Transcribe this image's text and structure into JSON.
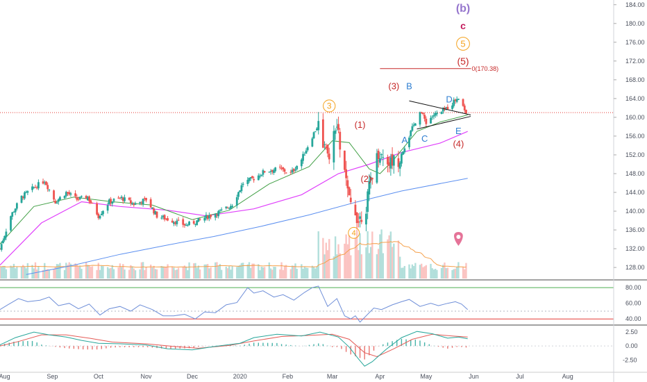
{
  "colors": {
    "up": "#26a69a",
    "down": "#ef5350",
    "vol_up": "#b2dfdb",
    "vol_down": "#fbc4c2",
    "sma20": "#43a047",
    "sma50": "#e040fb",
    "sma200": "#5b8ff0",
    "vol_ma": "#f5a04a",
    "rsi": "#6e8ed8",
    "macd": "#26a69a",
    "signal": "#e45b56",
    "wave_red": "#c62828",
    "wave_orange": "#f4a11c",
    "wave_blue": "#2f7fd1",
    "wave_purple": "#9575cd",
    "wave_pink": "#c2185b",
    "rsi_upper": "#4caf50",
    "rsi_lower": "#e53935",
    "price_line": "#e53935"
  },
  "chart_data": [
    {
      "type": "candlestick",
      "title": "",
      "y_ticks": [
        "184.00",
        "180.00",
        "176.00",
        "172.00",
        "168.00",
        "164.00",
        "160.00",
        "156.00",
        "152.00",
        "148.00",
        "144.00",
        "140.00",
        "136.00",
        "132.00",
        "128.00"
      ],
      "ylim": [
        125.5,
        185.0
      ],
      "x_ticks": [
        "Aug",
        "Sep",
        "Oct",
        "Nov",
        "Dec",
        "2020",
        "Feb",
        "Mar",
        "Apr",
        "May",
        "Jun",
        "Jul",
        "Aug"
      ],
      "x_tick_dates": [
        "2019-08-01",
        "2019-09-01",
        "2019-10-01",
        "2019-11-01",
        "2019-12-01",
        "2020-01-01",
        "2020-02-01",
        "2020-03-01",
        "2020-04-01",
        "2020-05-01",
        "2020-06-01",
        "2020-07-01",
        "2020-08-01"
      ],
      "x_range": [
        "2019-07-29",
        "2020-08-30"
      ],
      "current_price_line": 161.0,
      "target_label": "0(170.38)",
      "target_level": 170.38,
      "target_range": [
        "2020-04-01",
        "2020-06-01"
      ],
      "anchors": [
        [
          "2019-07-29",
          132.0
        ],
        [
          "2019-08-05",
          139.0
        ],
        [
          "2019-08-12",
          143.0
        ],
        [
          "2019-08-20",
          145.0
        ],
        [
          "2019-08-27",
          146.5
        ],
        [
          "2019-09-03",
          142.0
        ],
        [
          "2019-09-10",
          144.0
        ],
        [
          "2019-09-17",
          142.5
        ],
        [
          "2019-09-24",
          143.0
        ],
        [
          "2019-10-01",
          139.0
        ],
        [
          "2019-10-08",
          142.0
        ],
        [
          "2019-10-16",
          142.8
        ],
        [
          "2019-10-24",
          141.5
        ],
        [
          "2019-11-01",
          142.5
        ],
        [
          "2019-11-08",
          139.0
        ],
        [
          "2019-11-18",
          138.0
        ],
        [
          "2019-11-27",
          137.0
        ],
        [
          "2019-12-05",
          138.0
        ],
        [
          "2019-12-12",
          139.0
        ],
        [
          "2019-12-20",
          140.0
        ],
        [
          "2019-12-27",
          141.5
        ],
        [
          "2020-01-03",
          146.0
        ],
        [
          "2020-01-10",
          147.0
        ],
        [
          "2020-01-17",
          148.5
        ],
        [
          "2020-01-27",
          149.0
        ],
        [
          "2020-02-03",
          148.0
        ],
        [
          "2020-02-10",
          151.0
        ],
        [
          "2020-02-17",
          156.0
        ],
        [
          "2020-02-21",
          158.5
        ],
        [
          "2020-02-27",
          151.0
        ],
        [
          "2020-03-04",
          158.0
        ],
        [
          "2020-03-09",
          148.0
        ],
        [
          "2020-03-12",
          142.0
        ],
        [
          "2020-03-16",
          140.0
        ],
        [
          "2020-03-18",
          138.0
        ],
        [
          "2020-03-23",
          141.0
        ],
        [
          "2020-03-26",
          147.0
        ],
        [
          "2020-03-31",
          152.5
        ],
        [
          "2020-04-07",
          150.5
        ],
        [
          "2020-04-13",
          151.0
        ],
        [
          "2020-04-20",
          156.0
        ],
        [
          "2020-04-27",
          161.5
        ],
        [
          "2020-05-01",
          159.0
        ],
        [
          "2020-05-06",
          160.5
        ],
        [
          "2020-05-11",
          161.0
        ],
        [
          "2020-05-18",
          163.0
        ],
        [
          "2020-05-22",
          164.5
        ],
        [
          "2020-05-27",
          161.0
        ]
      ],
      "series_ma": {
        "sma20": [
          [
            "2019-07-29",
            133
          ],
          [
            "2019-08-20",
            141
          ],
          [
            "2019-09-15",
            143
          ],
          [
            "2019-10-10",
            142
          ],
          [
            "2019-11-05",
            141.3
          ],
          [
            "2019-12-01",
            138.2
          ],
          [
            "2019-12-25",
            140.2
          ],
          [
            "2020-01-20",
            145.8
          ],
          [
            "2020-02-15",
            149.5
          ],
          [
            "2020-03-01",
            155
          ],
          [
            "2020-03-12",
            154.6
          ],
          [
            "2020-03-25",
            149
          ],
          [
            "2020-04-01",
            148.0
          ],
          [
            "2020-04-10",
            151
          ],
          [
            "2020-04-25",
            157
          ],
          [
            "2020-05-10",
            159
          ],
          [
            "2020-05-28",
            160.5
          ]
        ],
        "sma50": [
          [
            "2019-07-29",
            128.5
          ],
          [
            "2019-08-25",
            137.5
          ],
          [
            "2019-09-20",
            142
          ],
          [
            "2019-10-15",
            141
          ],
          [
            "2019-11-15",
            140.2
          ],
          [
            "2019-12-10",
            139.0
          ],
          [
            "2020-01-10",
            140.5
          ],
          [
            "2020-02-10",
            143.5
          ],
          [
            "2020-03-05",
            148
          ],
          [
            "2020-03-25",
            150
          ],
          [
            "2020-04-15",
            152.5
          ],
          [
            "2020-05-10",
            154.5
          ],
          [
            "2020-05-28",
            157.0
          ]
        ],
        "sma200": [
          [
            "2019-08-15",
            126.5
          ],
          [
            "2019-09-15",
            128.5
          ],
          [
            "2019-10-15",
            130.8
          ],
          [
            "2019-11-15",
            132.8
          ],
          [
            "2019-12-15",
            134.6
          ],
          [
            "2020-01-15",
            136.8
          ],
          [
            "2020-02-15",
            139.2
          ],
          [
            "2020-03-15",
            141.8
          ],
          [
            "2020-04-15",
            144.3
          ],
          [
            "2020-05-28",
            147.0
          ]
        ]
      },
      "wave_labels": [
        {
          "text": "(b)",
          "date": "2020-05-25",
          "price": 182.5,
          "color": "wave_purple",
          "size": 16,
          "weight": "bold"
        },
        {
          "text": "c",
          "date": "2020-05-25",
          "price": 178.8,
          "color": "wave_pink",
          "size": 14,
          "weight": "bold"
        },
        {
          "text": "5",
          "date": "2020-05-25",
          "price": 175.0,
          "color": "wave_orange",
          "size": 13,
          "weight": "normal",
          "circle": true
        },
        {
          "text": "(5)",
          "date": "2020-05-25",
          "price": 171.2,
          "color": "wave_red",
          "size": 14,
          "weight": "normal"
        },
        {
          "text": "3",
          "date": "2020-02-28",
          "price": 161.8,
          "color": "wave_orange",
          "size": 12,
          "weight": "normal",
          "circle": true
        },
        {
          "text": "(3)",
          "date": "2020-04-10",
          "price": 166.0,
          "color": "wave_red",
          "size": 13,
          "weight": "normal"
        },
        {
          "text": "B",
          "date": "2020-04-20",
          "price": 166.0,
          "color": "wave_blue",
          "size": 13,
          "weight": "normal"
        },
        {
          "text": "(1)",
          "date": "2020-03-19",
          "price": 157.8,
          "color": "wave_red",
          "size": 13,
          "weight": "normal"
        },
        {
          "text": "(2)",
          "date": "2020-03-23",
          "price": 146.2,
          "color": "wave_red",
          "size": 13,
          "weight": "normal"
        },
        {
          "text": "A",
          "date": "2020-04-17",
          "price": 154.5,
          "color": "wave_blue",
          "size": 13,
          "weight": "normal"
        },
        {
          "text": "C",
          "date": "2020-04-30",
          "price": 154.8,
          "color": "wave_blue",
          "size": 13,
          "weight": "normal"
        },
        {
          "text": "D",
          "date": "2020-05-16",
          "price": 163.2,
          "color": "wave_blue",
          "size": 13,
          "weight": "normal"
        },
        {
          "text": "E",
          "date": "2020-05-22",
          "price": 156.4,
          "color": "wave_blue",
          "size": 13,
          "weight": "normal"
        },
        {
          "text": "(4)",
          "date": "2020-05-22",
          "price": 153.7,
          "color": "wave_red",
          "size": 13,
          "weight": "normal"
        },
        {
          "text": "4",
          "date": "2020-03-15",
          "price": 134.8,
          "color": "wave_orange",
          "size": 11,
          "weight": "normal",
          "circle": true
        }
      ],
      "triangle_lines": [
        [
          [
            "2020-04-20",
            163.5
          ],
          [
            "2020-05-30",
            160.5
          ]
        ],
        [
          [
            "2020-04-25",
            157.5
          ],
          [
            "2020-05-30",
            160.2
          ]
        ]
      ],
      "event_marker_date": "2020-05-22"
    },
    {
      "type": "line",
      "name": "rsi",
      "y_ticks": [
        "80.00",
        "60.00",
        "40.00"
      ],
      "ylim": [
        34,
        89
      ],
      "upper_band": 80,
      "lower_band": 40,
      "mid_level": 50,
      "points": [
        [
          "2019-07-29",
          52
        ],
        [
          "2019-08-03",
          58
        ],
        [
          "2019-08-10",
          66
        ],
        [
          "2019-08-16",
          62
        ],
        [
          "2019-08-24",
          64
        ],
        [
          "2019-08-30",
          68
        ],
        [
          "2019-09-05",
          57
        ],
        [
          "2019-09-12",
          60
        ],
        [
          "2019-09-18",
          53
        ],
        [
          "2019-09-25",
          59
        ],
        [
          "2019-10-02",
          45
        ],
        [
          "2019-10-08",
          53
        ],
        [
          "2019-10-15",
          56
        ],
        [
          "2019-10-22",
          50
        ],
        [
          "2019-10-28",
          58
        ],
        [
          "2019-11-05",
          52
        ],
        [
          "2019-11-12",
          44
        ],
        [
          "2019-11-19",
          44
        ],
        [
          "2019-11-26",
          46
        ],
        [
          "2019-12-03",
          40
        ],
        [
          "2019-12-09",
          49
        ],
        [
          "2019-12-16",
          48
        ],
        [
          "2019-12-23",
          58
        ],
        [
          "2019-12-30",
          61
        ],
        [
          "2020-01-06",
          80
        ],
        [
          "2020-01-10",
          73
        ],
        [
          "2020-01-16",
          76
        ],
        [
          "2020-01-23",
          68
        ],
        [
          "2020-01-29",
          71
        ],
        [
          "2020-02-05",
          64
        ],
        [
          "2020-02-12",
          74
        ],
        [
          "2020-02-17",
          80
        ],
        [
          "2020-02-21",
          82
        ],
        [
          "2020-02-27",
          56
        ],
        [
          "2020-03-04",
          66
        ],
        [
          "2020-03-09",
          44
        ],
        [
          "2020-03-13",
          40
        ],
        [
          "2020-03-16",
          44
        ],
        [
          "2020-03-19",
          36
        ],
        [
          "2020-03-24",
          46
        ],
        [
          "2020-03-28",
          54
        ],
        [
          "2020-04-02",
          52
        ],
        [
          "2020-04-09",
          58
        ],
        [
          "2020-04-15",
          62
        ],
        [
          "2020-04-20",
          65
        ],
        [
          "2020-04-27",
          56
        ],
        [
          "2020-05-04",
          60
        ],
        [
          "2020-05-09",
          57
        ],
        [
          "2020-05-15",
          60
        ],
        [
          "2020-05-20",
          62
        ],
        [
          "2020-05-24",
          59
        ],
        [
          "2020-05-28",
          52
        ]
      ]
    },
    {
      "type": "bar+line",
      "name": "macd",
      "y_ticks": [
        "2.50",
        "0.00",
        "-2.50"
      ],
      "ylim": [
        -4.2,
        3.5
      ],
      "macd": [
        [
          "2019-07-29",
          0.2
        ],
        [
          "2019-08-08",
          1.5
        ],
        [
          "2019-08-20",
          2.5
        ],
        [
          "2019-08-30",
          2.0
        ],
        [
          "2019-09-10",
          1.6
        ],
        [
          "2019-09-20",
          1.0
        ],
        [
          "2019-10-01",
          0.5
        ],
        [
          "2019-10-15",
          0.4
        ],
        [
          "2019-11-01",
          0.2
        ],
        [
          "2019-11-15",
          -0.5
        ],
        [
          "2019-12-01",
          -0.7
        ],
        [
          "2019-12-15",
          -0.1
        ],
        [
          "2020-01-01",
          0.5
        ],
        [
          "2020-01-10",
          1.5
        ],
        [
          "2020-01-25",
          2.1
        ],
        [
          "2020-02-10",
          1.8
        ],
        [
          "2020-02-22",
          2.5
        ],
        [
          "2020-03-05",
          1.6
        ],
        [
          "2020-03-12",
          -0.2
        ],
        [
          "2020-03-18",
          -2.3
        ],
        [
          "2020-03-22",
          -3.6
        ],
        [
          "2020-03-27",
          -2.8
        ],
        [
          "2020-04-05",
          -0.6
        ],
        [
          "2020-04-15",
          1.5
        ],
        [
          "2020-04-25",
          2.6
        ],
        [
          "2020-05-05",
          2.2
        ],
        [
          "2020-05-15",
          1.4
        ],
        [
          "2020-05-22",
          1.6
        ],
        [
          "2020-05-28",
          1.3
        ]
      ],
      "signal": [
        [
          "2019-07-29",
          0.0
        ],
        [
          "2019-08-10",
          0.8
        ],
        [
          "2019-08-25",
          2.0
        ],
        [
          "2019-09-10",
          2.0
        ],
        [
          "2019-09-25",
          1.4
        ],
        [
          "2019-10-10",
          0.7
        ],
        [
          "2019-11-01",
          0.4
        ],
        [
          "2019-11-20",
          -0.1
        ],
        [
          "2019-12-05",
          -0.4
        ],
        [
          "2019-12-25",
          0.1
        ],
        [
          "2020-01-10",
          0.9
        ],
        [
          "2020-01-28",
          1.7
        ],
        [
          "2020-02-15",
          1.9
        ],
        [
          "2020-03-01",
          2.1
        ],
        [
          "2020-03-12",
          1.2
        ],
        [
          "2020-03-22",
          -1.2
        ],
        [
          "2020-03-30",
          -1.9
        ],
        [
          "2020-04-10",
          -0.5
        ],
        [
          "2020-04-22",
          1.2
        ],
        [
          "2020-05-05",
          2.1
        ],
        [
          "2020-05-18",
          1.8
        ],
        [
          "2020-05-28",
          1.6
        ]
      ]
    }
  ]
}
